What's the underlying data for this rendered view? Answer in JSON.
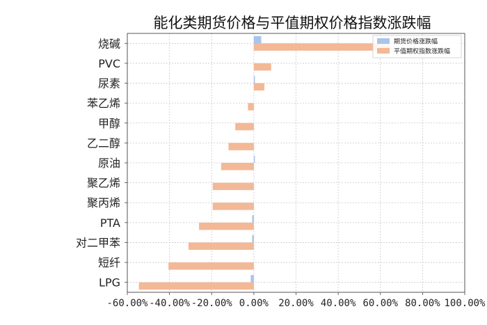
{
  "chart_data": {
    "type": "bar",
    "orientation": "horizontal",
    "title": "能化类期货价格与平值期权价格指数涨跌幅",
    "categories": [
      "烧碱",
      "PVC",
      "尿素",
      "苯乙烯",
      "甲醇",
      "乙二醇",
      "原油",
      "聚乙烯",
      "聚丙烯",
      "PTA",
      "对二甲苯",
      "短纤",
      "LPG"
    ],
    "series": [
      {
        "name": "期货价格涨跌幅",
        "color": "#a9c4ea",
        "values": [
          3.5,
          0,
          0.5,
          0,
          0,
          0,
          0.5,
          0,
          0,
          -0.8,
          -0.8,
          0,
          -1.5
        ]
      },
      {
        "name": "平值期权指数涨跌幅",
        "color": "#f3b896",
        "values": [
          64.5,
          8.2,
          5.0,
          -2.8,
          -8.8,
          -12.0,
          -15.5,
          -19.5,
          -19.5,
          -26.0,
          -31.0,
          -40.5,
          -54.5
        ]
      }
    ],
    "xlim": [
      -60,
      100
    ],
    "xticks": [
      "-60.00%",
      "-40.00%",
      "-20.00%",
      "0.00%",
      "20.00%",
      "40.00%",
      "60.00%",
      "80.00%",
      "100.00%"
    ],
    "grid": true,
    "legend_position": "top-right"
  }
}
